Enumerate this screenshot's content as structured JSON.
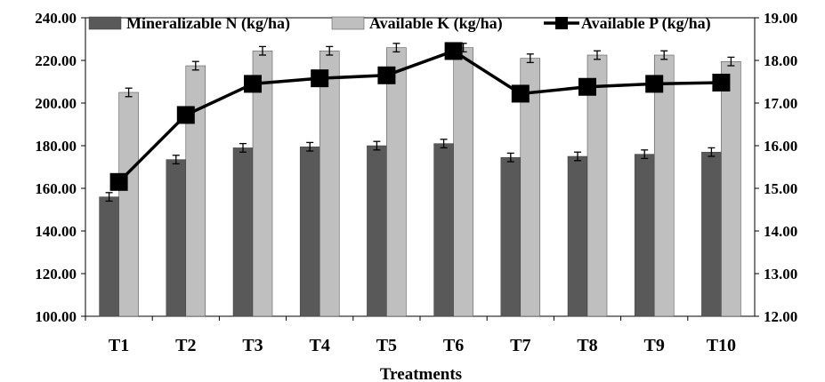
{
  "chart_data": {
    "type": "bar",
    "xlabel": "Treatments",
    "categories": [
      "T1",
      "T2",
      "T3",
      "T4",
      "T5",
      "T6",
      "T7",
      "T8",
      "T9",
      "T10"
    ],
    "y_left": {
      "min": 100,
      "max": 240,
      "step": 20,
      "ticks": [
        "100.00",
        "120.00",
        "140.00",
        "160.00",
        "180.00",
        "200.00",
        "220.00",
        "240.00"
      ]
    },
    "y_right": {
      "min": 12,
      "max": 19,
      "step": 1,
      "ticks": [
        "12.00",
        "13.00",
        "14.00",
        "15.00",
        "16.00",
        "17.00",
        "18.00",
        "19.00"
      ]
    },
    "legend_position": "top",
    "series": [
      {
        "name": "Mineralizable N (kg/ha)",
        "kind": "bar",
        "axis": "left",
        "color": "#595959",
        "values": [
          156,
          173.5,
          179,
          179.5,
          180,
          181,
          174.5,
          175,
          176,
          177
        ],
        "error": 2
      },
      {
        "name": "Available K (kg/ha)",
        "kind": "bar",
        "axis": "left",
        "color": "#bfbfbf",
        "values": [
          205,
          217.5,
          224.5,
          224.5,
          226,
          226,
          221,
          222.5,
          222.5,
          219.5
        ],
        "error": 2
      },
      {
        "name": "Available P (kg/ha)",
        "kind": "line",
        "axis": "right",
        "color": "#000000",
        "marker": "square",
        "values": [
          15.15,
          16.72,
          17.45,
          17.58,
          17.65,
          18.22,
          17.22,
          17.38,
          17.45,
          17.48
        ]
      }
    ]
  }
}
